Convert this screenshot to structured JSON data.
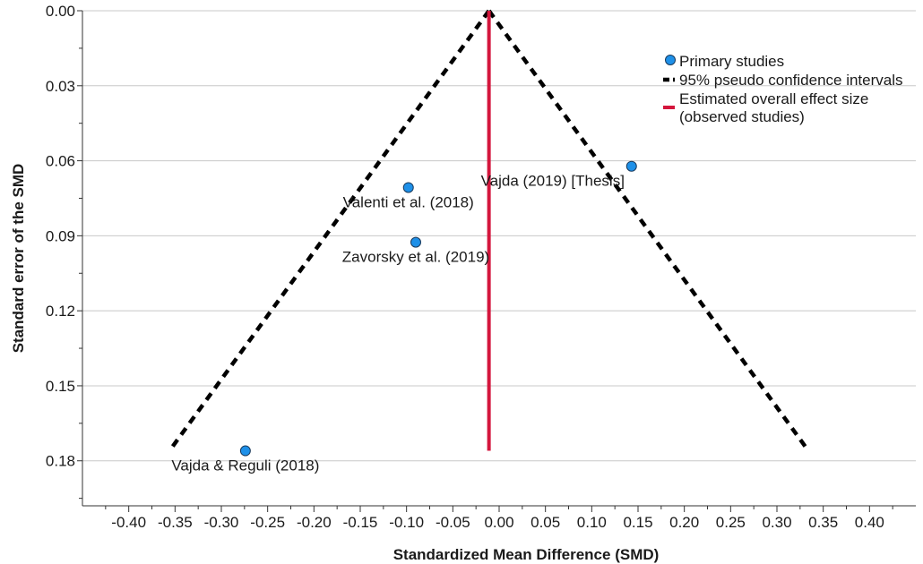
{
  "chart_data": {
    "type": "scatter",
    "xlabel": "Standardized Mean Difference (SMD)",
    "ylabel": "Standard error of the SMD",
    "xlim": [
      -0.45,
      0.45
    ],
    "ylim": [
      0.0,
      0.198
    ],
    "y_inverted": true,
    "x_ticks": [
      -0.4,
      -0.35,
      -0.3,
      -0.25,
      -0.2,
      -0.15,
      -0.1,
      -0.05,
      0.0,
      0.05,
      0.1,
      0.15,
      0.2,
      0.25,
      0.3,
      0.35,
      0.4
    ],
    "x_tick_labels": [
      "-0.40",
      "-0.35",
      "-0.30",
      "-0.25",
      "-0.20",
      "-0.15",
      "-0.10",
      "-0.05",
      "0.00",
      "0.05",
      "0.10",
      "0.15",
      "0.20",
      "0.25",
      "0.30",
      "0.35",
      "0.40"
    ],
    "y_ticks": [
      0.0,
      0.03,
      0.06,
      0.09,
      0.12,
      0.15,
      0.18
    ],
    "y_tick_labels": [
      "0.00",
      "0.03",
      "0.06",
      "0.09",
      "0.12",
      "0.15",
      "0.18"
    ],
    "grid": "horizontal",
    "points": [
      {
        "label": "Vajda (2019) [Thesis]",
        "x": 0.143,
        "y": 0.0622,
        "label_pos": "below-left"
      },
      {
        "label": "Valenti et al. (2018)",
        "x": -0.098,
        "y": 0.0707,
        "label_pos": "below"
      },
      {
        "label": "Zavorsky et al. (2019)",
        "x": -0.09,
        "y": 0.0926,
        "label_pos": "below"
      },
      {
        "label": "Vajda & Reguli (2018)",
        "x": -0.274,
        "y": 0.176,
        "label_pos": "below"
      }
    ],
    "overall_effect": {
      "x": -0.011,
      "y_from": 0.0,
      "y_to": 0.176
    },
    "pseudo_ci": {
      "apex": [
        -0.011,
        0.0
      ],
      "left_bottom": [
        -0.356,
        0.176
      ],
      "right_bottom": [
        0.334,
        0.176
      ]
    },
    "legend": {
      "placement": "top-right",
      "entries": [
        {
          "label": "Primary studies",
          "symbol": "circle"
        },
        {
          "label": "95% pseudo confidence intervals",
          "symbol": "dashed-line"
        },
        {
          "label": "Estimated overall effect size (observed studies)",
          "label_lines": [
            "Estimated overall effect size",
            "(observed studies)"
          ],
          "symbol": "solid-line"
        }
      ]
    },
    "colors": {
      "point": "#1e90e8",
      "point_stroke": "#1a3a5c",
      "effect_line": "#d4163c",
      "ci_line": "#000000",
      "grid": "#c8c8c8"
    }
  }
}
